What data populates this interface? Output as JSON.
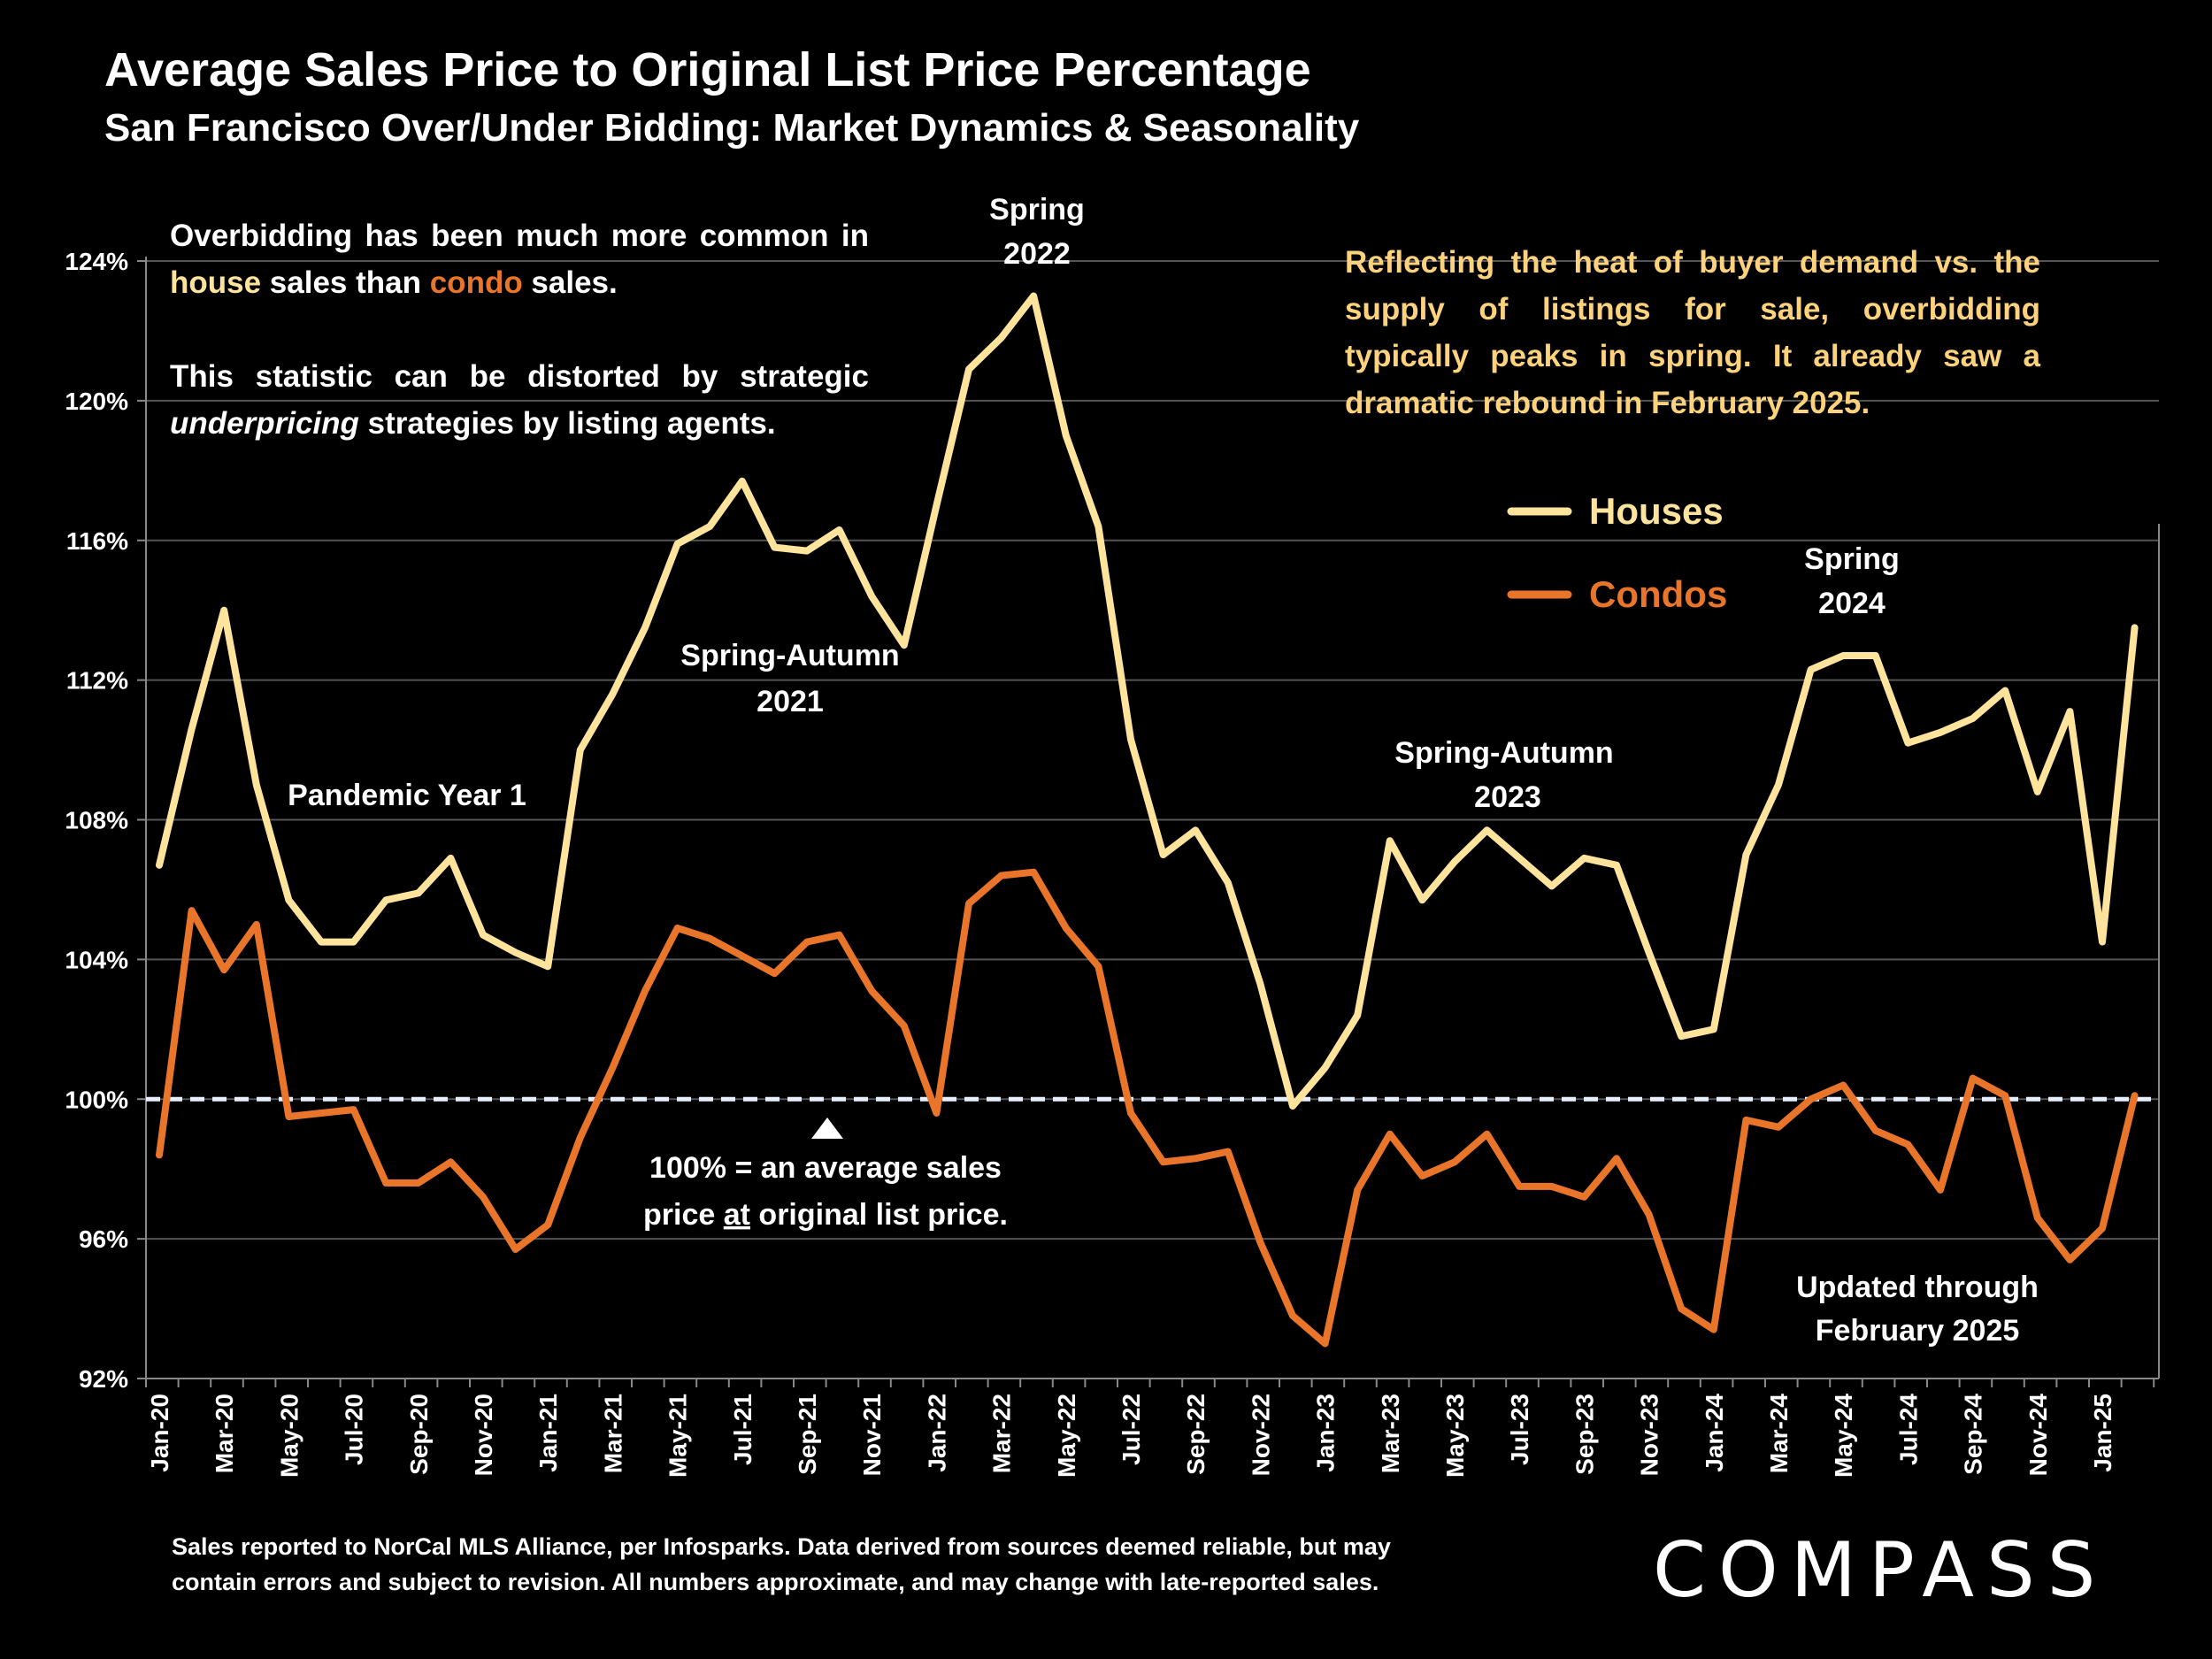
{
  "title": "Average Sales Price to Original List Price Percentage",
  "subtitle": "San Francisco Over/Under Bidding: Market Dynamics & Seasonality",
  "notes": {
    "left_p1_a": "Overbidding has been much more common in ",
    "left_p1_house": "house",
    "left_p1_b": " sales than ",
    "left_p1_condo": "condo",
    "left_p1_c": " sales.",
    "left_p2_a": "This statistic can be distorted by strategic ",
    "left_p2_em": "underpricing",
    "left_p2_b": " strategies by listing agents.",
    "right": "Reflecting the heat of buyer demand vs. the supply of listings for sale, overbidding typically peaks in spring. It already saw a dramatic rebound in February 2025."
  },
  "footer": {
    "line1": "Sales reported to NorCal MLS Alliance, per Infosparks. Data derived from sources deemed reliable, but may",
    "line2": "contain errors and subject to revision. All numbers approximate, and may change with late-reported sales."
  },
  "logo": "COMPASS",
  "colors": {
    "houses": "#fde39b",
    "condos": "#e8752a",
    "reference": "#e6eeff",
    "grid": "#555555"
  },
  "chart_data": {
    "type": "line",
    "title": "Average Sales Price to Original List Price Percentage",
    "xlabel": "",
    "ylabel": "",
    "ylim": [
      92,
      124
    ],
    "y_ticks": [
      "92%",
      "96%",
      "100%",
      "104%",
      "108%",
      "112%",
      "116%",
      "120%",
      "124%"
    ],
    "y_tick_values": [
      92,
      96,
      100,
      104,
      108,
      112,
      116,
      120,
      124
    ],
    "grid": true,
    "legend_position": "upper-right",
    "x": [
      "Jan-20",
      "Feb-20",
      "Mar-20",
      "Apr-20",
      "May-20",
      "Jun-20",
      "Jul-20",
      "Aug-20",
      "Sep-20",
      "Oct-20",
      "Nov-20",
      "Dec-20",
      "Jan-21",
      "Feb-21",
      "Mar-21",
      "Apr-21",
      "May-21",
      "Jun-21",
      "Jul-21",
      "Aug-21",
      "Sep-21",
      "Oct-21",
      "Nov-21",
      "Dec-21",
      "Jan-22",
      "Feb-22",
      "Mar-22",
      "Apr-22",
      "May-22",
      "Jun-22",
      "Jul-22",
      "Aug-22",
      "Sep-22",
      "Oct-22",
      "Nov-22",
      "Dec-22",
      "Jan-23",
      "Feb-23",
      "Mar-23",
      "Apr-23",
      "May-23",
      "Jun-23",
      "Jul-23",
      "Aug-23",
      "Sep-23",
      "Oct-23",
      "Nov-23",
      "Dec-23",
      "Jan-24",
      "Feb-24",
      "Mar-24",
      "Apr-24",
      "May-24",
      "Jun-24",
      "Jul-24",
      "Aug-24",
      "Sep-24",
      "Oct-24",
      "Nov-24",
      "Dec-24",
      "Jan-25",
      "Feb-25"
    ],
    "x_tick_labels": [
      "Jan-20",
      "Mar-20",
      "May-20",
      "Jul-20",
      "Sep-20",
      "Nov-20",
      "Jan-21",
      "Mar-21",
      "May-21",
      "Jul-21",
      "Sep-21",
      "Nov-21",
      "Jan-22",
      "Mar-22",
      "May-22",
      "Jul-22",
      "Sep-22",
      "Nov-22",
      "Jan-23",
      "Mar-23",
      "May-23",
      "Jul-23",
      "Sep-23",
      "Nov-23",
      "Jan-24",
      "Mar-24",
      "May-24",
      "Jul-24",
      "Sep-24",
      "Nov-24",
      "Jan-25"
    ],
    "reference_line": 100,
    "series": [
      {
        "name": "Houses",
        "values": [
          106.7,
          110.6,
          114.0,
          109.0,
          105.7,
          104.5,
          104.5,
          105.7,
          105.9,
          106.9,
          104.7,
          104.2,
          103.8,
          110.0,
          111.6,
          113.5,
          115.9,
          116.4,
          117.7,
          115.8,
          115.7,
          116.3,
          114.4,
          113.0,
          117.0,
          120.9,
          121.8,
          123.0,
          119.0,
          116.4,
          110.3,
          107.0,
          107.7,
          106.2,
          103.3,
          99.8,
          100.9,
          102.4,
          107.4,
          105.7,
          106.8,
          107.7,
          106.9,
          106.1,
          106.9,
          106.7,
          104.2,
          101.8,
          102.0,
          107.0,
          109.0,
          112.3,
          112.7,
          112.7,
          110.2,
          110.5,
          110.9,
          111.7,
          108.8,
          111.1,
          104.5,
          113.5
        ]
      },
      {
        "name": "Condos",
        "values": [
          98.4,
          105.4,
          103.7,
          105.0,
          99.5,
          99.6,
          99.7,
          97.6,
          97.6,
          98.2,
          97.2,
          95.7,
          96.4,
          98.9,
          100.9,
          103.1,
          104.9,
          104.6,
          104.1,
          103.6,
          104.5,
          104.7,
          103.1,
          102.1,
          99.6,
          105.6,
          106.4,
          106.5,
          104.9,
          103.8,
          99.6,
          98.2,
          98.3,
          98.5,
          95.9,
          93.8,
          93.0,
          97.4,
          99.0,
          97.8,
          98.2,
          99.0,
          97.5,
          97.5,
          97.2,
          98.3,
          96.7,
          94.0,
          93.4,
          99.4,
          99.2,
          100.0,
          100.4,
          99.1,
          98.7,
          97.4,
          100.6,
          100.1,
          96.6,
          95.4,
          96.3,
          100.1
        ]
      }
    ],
    "annotations": {
      "spring2022_1": "Spring",
      "spring2022_2": "2022",
      "spring_autumn_2021_1": "Spring-Autumn",
      "spring_autumn_2021_2": "2021",
      "pandemic": "Pandemic Year 1",
      "spring_autumn_2023_1": "Spring-Autumn",
      "spring_autumn_2023_2": "2023",
      "spring2024_1": "Spring",
      "spring2024_2": "2024",
      "ref_note_1": "100% = an average sales",
      "ref_note_2a": "price ",
      "ref_note_2u": "at",
      "ref_note_2b": " original list price.",
      "updated_1": "Updated through",
      "updated_2": "February 2025"
    }
  }
}
